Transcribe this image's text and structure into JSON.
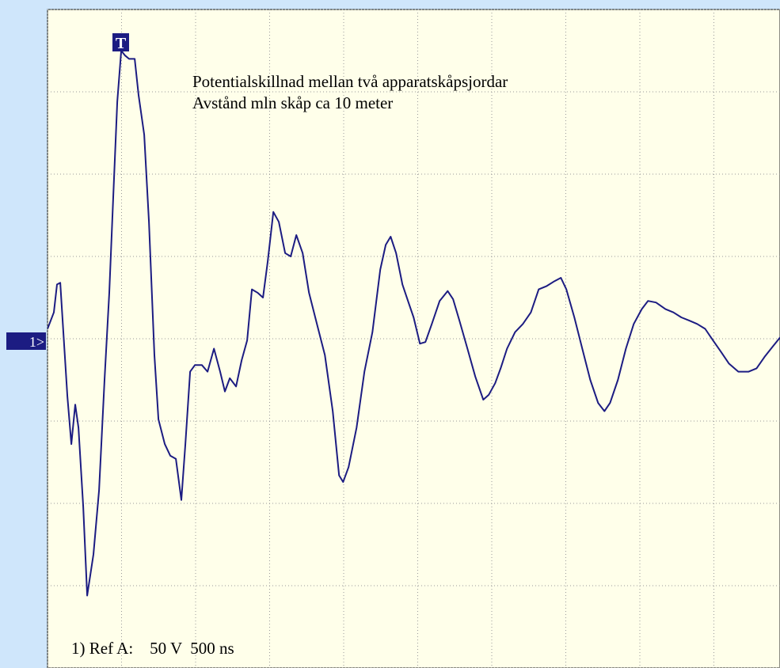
{
  "chart_data": {
    "type": "line",
    "trigger_label": "T",
    "channel_label": "1>",
    "annotations": [
      "Potentialskillnad mellan två apparatskåpsjordar",
      "Avstånd mln skåp ca 10 meter"
    ],
    "reference": "1) Ref A:    50 V  500 ns",
    "xlim": [
      0,
      5000
    ],
    "ylim": [
      -200,
      200
    ],
    "xticks": [
      0,
      500,
      1000,
      1500,
      2000,
      2500,
      3000,
      3500,
      4000,
      4500,
      5000
    ],
    "yticks": [
      -200,
      -150,
      -100,
      -50,
      0,
      50,
      100,
      150,
      200
    ],
    "grid": true,
    "series": [
      {
        "color": "#1c1c82",
        "x": [
          0,
          43,
          64,
          86,
          107,
          134,
          161,
          187,
          209,
          241,
          268,
          310,
          348,
          385,
          417,
          444,
          471,
          498,
          524,
          551,
          589,
          615,
          653,
          685,
          722,
          749,
          792,
          829,
          867,
          904,
          931,
          963,
          995,
          1043,
          1081,
          1124,
          1166,
          1198,
          1231,
          1273,
          1311,
          1348,
          1380,
          1418,
          1455,
          1487,
          1525,
          1562,
          1605,
          1642,
          1680,
          1723,
          1766,
          1819,
          1873,
          1926,
          1969,
          1996,
          2033,
          2087,
          2140,
          2194,
          2247,
          2284,
          2317,
          2354,
          2397,
          2434,
          2472,
          2515,
          2552,
          2595,
          2648,
          2702,
          2739,
          2782,
          2836,
          2889,
          2943,
          2980,
          3023,
          3060,
          3103,
          3157,
          3210,
          3264,
          3317,
          3371,
          3424,
          3467,
          3504,
          3558,
          3611,
          3665,
          3718,
          3761,
          3799,
          3852,
          3906,
          3959,
          4013,
          4055,
          4109,
          4173,
          4227,
          4280,
          4334,
          4387,
          4441,
          4494,
          4548,
          4601,
          4665,
          4735,
          4788,
          4842,
          4895,
          4949
        ],
        "values": [
          6,
          16,
          33,
          34,
          4,
          -35,
          -64,
          -40,
          -54,
          -102,
          -156,
          -131,
          -92,
          -25,
          28,
          86,
          144,
          175,
          172,
          170,
          170,
          148,
          124,
          71,
          -10,
          -49,
          -64,
          -71,
          -73,
          -98,
          -64,
          -20,
          -16,
          -16,
          -20,
          -6,
          -20,
          -32,
          -24,
          -29,
          -13,
          -1,
          30,
          28,
          25,
          47,
          77,
          71,
          52,
          50,
          63,
          52,
          28,
          9,
          -10,
          -44,
          -83,
          -87,
          -78,
          -54,
          -20,
          4,
          42,
          57,
          62,
          52,
          33,
          23,
          13,
          -3,
          -2,
          9,
          23,
          29,
          24,
          11,
          -6,
          -23,
          -37,
          -34,
          -27,
          -18,
          -6,
          4,
          9,
          16,
          30,
          32,
          35,
          37,
          30,
          13,
          -6,
          -25,
          -39,
          -44,
          -39,
          -25,
          -6,
          9,
          18,
          23,
          22,
          18,
          16,
          13,
          11,
          9,
          6,
          -1,
          -8,
          -15,
          -20,
          -20,
          -18,
          -11,
          -5,
          1
        ]
      }
    ]
  }
}
